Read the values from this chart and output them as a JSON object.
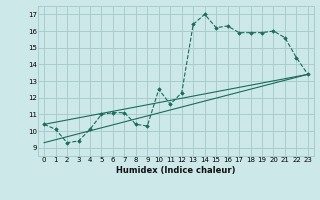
{
  "xlabel": "Humidex (Indice chaleur)",
  "bg_color": "#cce8e8",
  "grid_color": "#aacccc",
  "line_color": "#1a6b5a",
  "xlim": [
    -0.5,
    23.5
  ],
  "ylim": [
    8.5,
    17.5
  ],
  "xticks": [
    0,
    1,
    2,
    3,
    4,
    5,
    6,
    7,
    8,
    9,
    10,
    11,
    12,
    13,
    14,
    15,
    16,
    17,
    18,
    19,
    20,
    21,
    22,
    23
  ],
  "yticks": [
    9,
    10,
    11,
    12,
    13,
    14,
    15,
    16,
    17
  ],
  "series_x": [
    0,
    1,
    2,
    3,
    4,
    5,
    6,
    7,
    8,
    9,
    10,
    11,
    12,
    13,
    14,
    15,
    16,
    17,
    18,
    19,
    20,
    21,
    22,
    23
  ],
  "series_y": [
    10.4,
    10.1,
    9.3,
    9.4,
    10.1,
    11.0,
    11.1,
    11.1,
    10.4,
    10.3,
    12.5,
    11.6,
    12.3,
    16.4,
    17.0,
    16.2,
    16.3,
    15.9,
    15.9,
    15.9,
    16.0,
    15.6,
    14.4,
    13.4
  ],
  "trend1_x": [
    0,
    23
  ],
  "trend1_y": [
    10.4,
    13.4
  ],
  "trend2_x": [
    0,
    23
  ],
  "trend2_y": [
    9.3,
    13.4
  ]
}
